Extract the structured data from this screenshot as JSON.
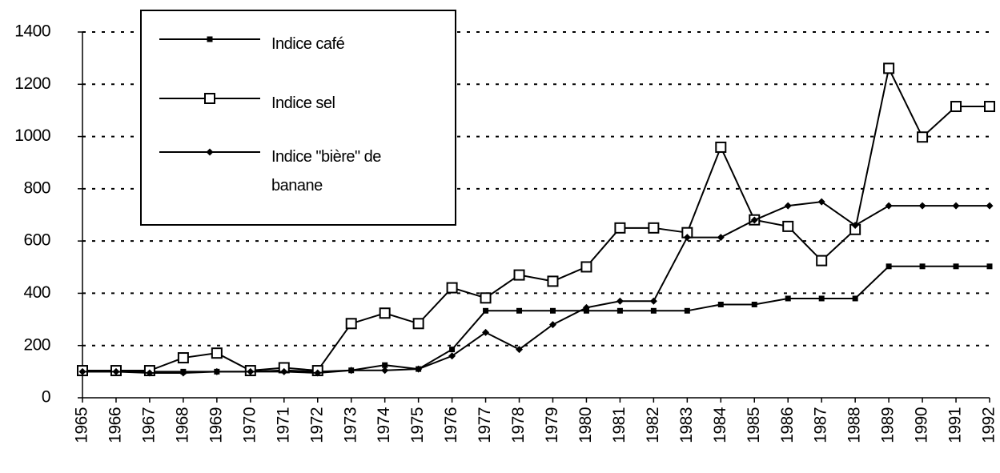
{
  "chart_data": {
    "type": "line",
    "categories": [
      "1965",
      "1966",
      "1967",
      "1968",
      "1969",
      "1970",
      "1971",
      "1972",
      "1973",
      "1974",
      "1975",
      "1976",
      "1977",
      "1978",
      "1979",
      "1980",
      "1981",
      "1982",
      "1983",
      "1984",
      "1985",
      "1986",
      "1987",
      "1988",
      "1989",
      "1990",
      "1991",
      "1992"
    ],
    "series": [
      {
        "name": "Indice café",
        "color": "#000000",
        "marker": "filled-square",
        "values": [
          100,
          100,
          100,
          100,
          100,
          100,
          105,
          100,
          105,
          125,
          110,
          185,
          333,
          333,
          333,
          333,
          333,
          333,
          333,
          357,
          357,
          380,
          380,
          380,
          503,
          503,
          503,
          503
        ]
      },
      {
        "name": "Indice sel",
        "color": "#000000",
        "marker": "open-square",
        "values": [
          104,
          104,
          104,
          153,
          171,
          104,
          115,
          104,
          284,
          324,
          284,
          421,
          382,
          470,
          446,
          501,
          650,
          650,
          632,
          959,
          681,
          656,
          525,
          644,
          1261,
          998,
          1115,
          1115
        ]
      },
      {
        "name": "Indice \"bière\" de banane",
        "color": "#000000",
        "marker": "diamond",
        "values": [
          100,
          100,
          95,
          95,
          100,
          100,
          100,
          95,
          105,
          105,
          110,
          160,
          250,
          185,
          280,
          345,
          370,
          370,
          614,
          614,
          680,
          735,
          750,
          660,
          735,
          735,
          735,
          735
        ]
      }
    ],
    "ylim": [
      0,
      1400
    ],
    "yticks": [
      0,
      200,
      400,
      600,
      800,
      1000,
      1200,
      1400
    ],
    "grid": true
  }
}
